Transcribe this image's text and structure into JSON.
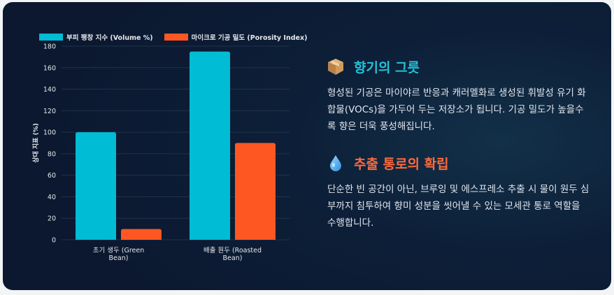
{
  "chart_data": {
    "type": "bar",
    "categories": [
      "초기 생두 (Green Bean)",
      "배출 원두 (Roasted Bean)"
    ],
    "category_lines": [
      [
        "초기 생두 (Green",
        "Bean)"
      ],
      [
        "배출 원두 (Roasted",
        "Bean)"
      ]
    ],
    "series": [
      {
        "name": "부피 팽창 지수 (Volume %)",
        "values": [
          100,
          175
        ],
        "color": "#00bcd4"
      },
      {
        "name": "마이크로 기공 밀도 (Porosity Index)",
        "values": [
          10,
          90
        ],
        "color": "#ff5722"
      }
    ],
    "ylabel": "상대 지표 (%)",
    "ylim": [
      0,
      180
    ],
    "yticks": [
      0,
      20,
      40,
      60,
      80,
      100,
      120,
      140,
      160,
      180
    ],
    "grid": true,
    "legend_position": "top-left"
  },
  "sections": [
    {
      "icon": "package-icon",
      "title": "향기의 그릇",
      "body": "형성된 기공은 마이야르 반응과 캐러멜화로 생성된 휘발성 유기 화합물(VOCs)을 가두어 두는 저장소가 됩니다. 기공 밀도가 높을수록 향은 더욱 풍성해집니다."
    },
    {
      "icon": "droplet-icon",
      "title": "추출 통로의 확립",
      "body": "단순한 빈 공간이 아닌, 브루잉 및 에스프레소 추출 시 물이 원두 심부까지 침투하여 향미 성분을 씻어낼 수 있는 모세관 통로 역할을 수행합니다."
    }
  ]
}
